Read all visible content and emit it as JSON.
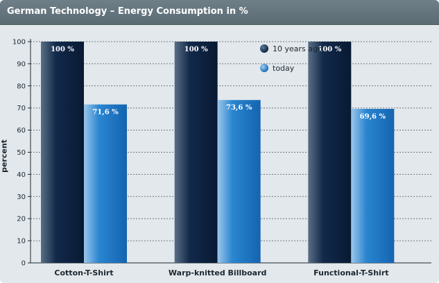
{
  "header": {
    "title": "German Technology – Energy Consumption in %"
  },
  "colors": {
    "title_bar": "#5e6e77",
    "plot_bg": "#e3e8ec",
    "series_dark": "#0d2340",
    "series_light": "#1a73c4",
    "grid": "#6a7780"
  },
  "chart_data": {
    "type": "bar",
    "title": "German Technology – Energy Consumption in %",
    "xlabel": "",
    "ylabel": "percent",
    "ylim": [
      0,
      100
    ],
    "yticks": [
      0,
      10,
      20,
      30,
      40,
      50,
      60,
      70,
      80,
      90,
      100
    ],
    "grid": true,
    "legend_position": "top-right",
    "categories": [
      "Cotton-T-Shirt",
      "Warp-knitted Billboard",
      "Functional-T-Shirt"
    ],
    "series": [
      {
        "name": "10 years ago",
        "values": [
          100,
          100,
          100
        ],
        "labels": [
          "100 %",
          "100 %",
          "100 %"
        ],
        "color": "#0d2340"
      },
      {
        "name": "today",
        "values": [
          71.6,
          73.6,
          69.6
        ],
        "labels": [
          "71,6 %",
          "73,6 %",
          "69,6 %"
        ],
        "color": "#1a73c4"
      }
    ]
  }
}
